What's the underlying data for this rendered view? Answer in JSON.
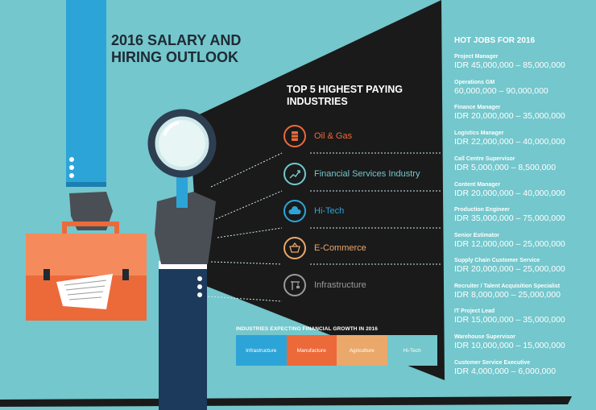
{
  "header": {
    "title": "2016 SALARY AND HIRING OUTLOOK"
  },
  "top_industries": {
    "title": "TOP 5 HIGHEST PAYING INDUSTRIES",
    "items": [
      {
        "label": "Oil & Gas",
        "color": "#ec6a3a",
        "icon": "oil-barrel-icon"
      },
      {
        "label": "Financial Services Industry",
        "color": "#74c7cc",
        "icon": "growth-chart-icon"
      },
      {
        "label": "Hi-Tech",
        "color": "#2da4d8",
        "icon": "cloud-icon"
      },
      {
        "label": "E-Commerce",
        "color": "#eaa86b",
        "icon": "shopping-basket-icon"
      },
      {
        "label": "Infrastructure",
        "color": "#9a9a9a",
        "icon": "crane-icon"
      }
    ]
  },
  "growth": {
    "title": "INDUSTRIES EXPECTING FINANCIAL GROWTH IN 2016",
    "items": [
      {
        "label": "Infrastructure",
        "color": "#2da4d8"
      },
      {
        "label": "Manufacture",
        "color": "#ec6a3a"
      },
      {
        "label": "Agriculture",
        "color": "#eaa86b"
      },
      {
        "label": "Hi-Tech",
        "color": "#74c7cc"
      }
    ]
  },
  "hot_jobs": {
    "title": "HOT JOBS FOR 2016",
    "items": [
      {
        "title": "Project Manager",
        "salary": "IDR 45,000,000 – 85,000,000"
      },
      {
        "title": "Operations GM",
        "salary": "60,000,000 – 90,000,000"
      },
      {
        "title": "Finance Manager",
        "salary": "IDR 20,000,000 – 35,000,000"
      },
      {
        "title": "Logistics Manager",
        "salary": "IDR 22,000,000 – 40,000,000"
      },
      {
        "title": "Call Centre Supervisor",
        "salary": "IDR 5,000,000 – 8,500,000"
      },
      {
        "title": "Content Manager",
        "salary": "IDR 20,000,000 – 40,000,000"
      },
      {
        "title": "Production Engineer",
        "salary": "IDR 35,000,000 – 75,000,000"
      },
      {
        "title": "Senior Estimator",
        "salary": "IDR 12,000,000 – 25,000,000"
      },
      {
        "title": "Supply Chain Customer Service",
        "salary": "IDR 20,000,000 – 25,000,000"
      },
      {
        "title": "Recruiter / Talent Acquisition Specialist",
        "salary": "IDR 8,000,000 – 25,000,000"
      },
      {
        "title": "IT Project Lead",
        "salary": "IDR 15,000,000 – 35,000,000"
      },
      {
        "title": "Warehouse Supervisor",
        "salary": "IDR 10,000,000 – 15,000,000"
      },
      {
        "title": "Customer Service Executive",
        "salary": "IDR 4,000,000 – 6,000,000"
      }
    ]
  },
  "colors": {
    "background": "#74c7cc",
    "dark": "#1a1a1a",
    "title": "#1f2a33"
  }
}
